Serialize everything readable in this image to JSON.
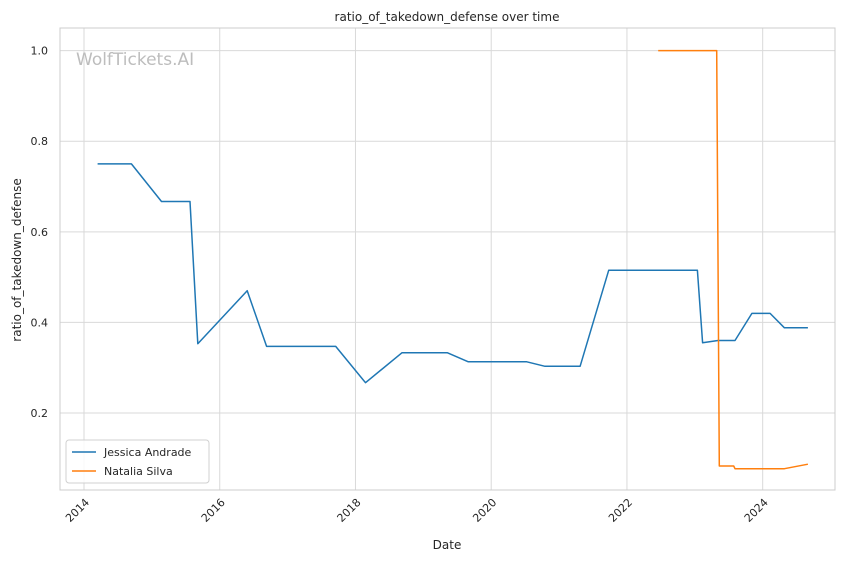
{
  "chart_data": {
    "type": "line",
    "title": "ratio_of_takedown_defense over time",
    "xlabel": "Date",
    "ylabel": "ratio_of_takedown_defense",
    "watermark": "WolfTickets.AI",
    "x_ticks": [
      "2014",
      "2016",
      "2018",
      "2020",
      "2022",
      "2024"
    ],
    "y_ticks": [
      "0.2",
      "0.4",
      "0.6",
      "0.8",
      "1.0"
    ],
    "xlim": [
      "2013-08-25",
      "2025-01-25"
    ],
    "ylim": [
      0.03,
      1.05
    ],
    "grid": true,
    "legend_position": "lower-left",
    "series": [
      {
        "name": "Jessica Andrade",
        "color": "#1f77b4",
        "points": [
          [
            "2014-03-15",
            0.75
          ],
          [
            "2014-09-13",
            0.75
          ],
          [
            "2015-02-22",
            0.667
          ],
          [
            "2015-07-25",
            0.667
          ],
          [
            "2015-09-05",
            0.353
          ],
          [
            "2016-05-28",
            0.47
          ],
          [
            "2016-09-10",
            0.347
          ],
          [
            "2017-09-17",
            0.347
          ],
          [
            "2018-02-24",
            0.267
          ],
          [
            "2018-09-08",
            0.333
          ],
          [
            "2019-05-11",
            0.333
          ],
          [
            "2019-08-31",
            0.313
          ],
          [
            "2020-07-11",
            0.313
          ],
          [
            "2020-10-17",
            0.303
          ],
          [
            "2021-04-24",
            0.303
          ],
          [
            "2021-09-25",
            0.515
          ],
          [
            "2023-01-15",
            0.515
          ],
          [
            "2023-02-12",
            0.355
          ],
          [
            "2023-05-06",
            0.36
          ],
          [
            "2023-08-05",
            0.36
          ],
          [
            "2023-11-04",
            0.42
          ],
          [
            "2024-02-10",
            0.42
          ],
          [
            "2024-04-27",
            0.388
          ],
          [
            "2024-09-01",
            0.388
          ]
        ]
      },
      {
        "name": "Natalia Silva",
        "color": "#ff7f0e",
        "points": [
          [
            "2022-06-18",
            1.0
          ],
          [
            "2023-04-29",
            1.0
          ],
          [
            "2023-05-13",
            0.083
          ],
          [
            "2023-07-29",
            0.083
          ],
          [
            "2023-08-05",
            0.077
          ],
          [
            "2024-04-27",
            0.077
          ],
          [
            "2024-09-01",
            0.087
          ]
        ]
      }
    ]
  }
}
